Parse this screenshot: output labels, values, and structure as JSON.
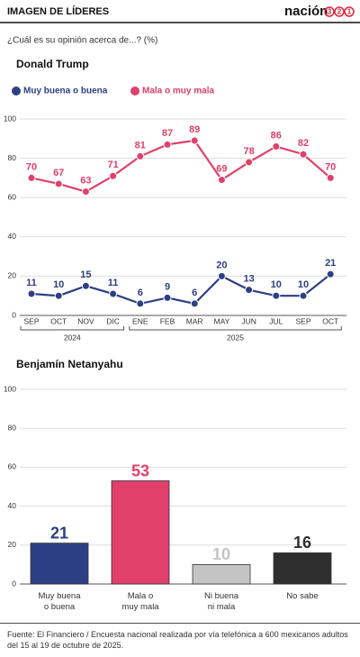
{
  "header": {
    "title": "IMAGEN DE LÍDERES",
    "logo": "nación",
    "logo_digits": [
      "3",
      "2",
      "1"
    ],
    "subtitle": "¿Cuál es su opinión acerca de...?  (%)"
  },
  "chart_data": [
    {
      "type": "line",
      "title": "Donald Trump",
      "categories": [
        "SEP",
        "OCT",
        "NOV",
        "DIC",
        "ENE",
        "FEB",
        "MAR",
        "MAY",
        "JUN",
        "JUL",
        "SEP",
        "OCT"
      ],
      "x_groups": [
        {
          "label": "2024",
          "count": 4
        },
        {
          "label": "2025",
          "count": 8
        }
      ],
      "series": [
        {
          "name": "Muy buena o buena",
          "color": "#2d3f84",
          "values": [
            11,
            10,
            15,
            11,
            6,
            9,
            6,
            20,
            13,
            10,
            10,
            21
          ]
        },
        {
          "name": "Mala o muy mala",
          "color": "#e0406a",
          "values": [
            70,
            67,
            63,
            71,
            81,
            87,
            89,
            69,
            78,
            86,
            82,
            70
          ]
        }
      ],
      "ylim": [
        0,
        100
      ],
      "yticks": [
        0,
        20,
        40,
        60,
        80,
        100
      ],
      "grid": true
    },
    {
      "type": "bar",
      "title": "Benjamín Netanyahu",
      "categories": [
        "Muy buena\no buena",
        "Mala o\nmuy mala",
        "Ni buena\nni mala",
        "No sabe"
      ],
      "values": [
        21,
        53,
        10,
        16
      ],
      "colors": [
        "#2d3f84",
        "#e0406a",
        "#c4c4c4",
        "#2f2f2f"
      ],
      "ylim": [
        0,
        100
      ],
      "yticks": [
        0,
        20,
        40,
        60,
        80,
        100
      ],
      "grid": true
    }
  ],
  "footer": "Fuente: El Financiero / Encuesta nacional realizada por vía telefónica a 600 mexicanos adultos del 15 al 19 de octubre de 2025."
}
